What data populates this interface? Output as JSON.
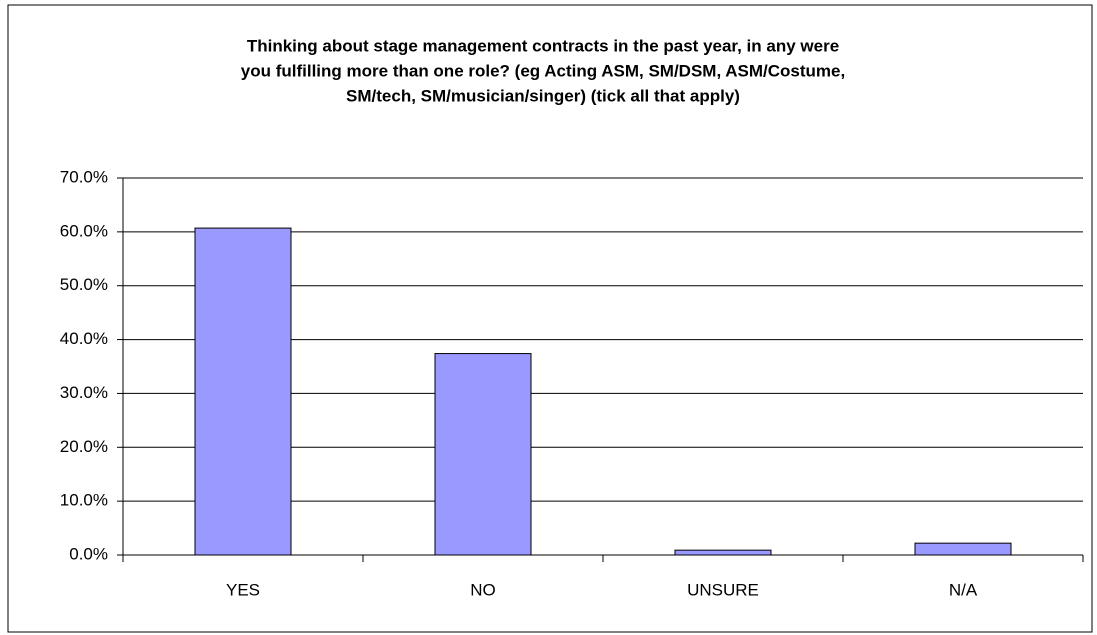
{
  "chart_data": {
    "type": "bar",
    "title": [
      "Thinking about stage management contracts in the past year, in any were",
      "you fulfilling more than one role? (eg Acting ASM, SM/DSM, ASM/Costume,",
      "SM/tech, SM/musician/singer) (tick all that apply)"
    ],
    "categories": [
      "YES",
      "NO",
      "UNSURE",
      "N/A"
    ],
    "values": [
      60.7,
      37.4,
      0.9,
      2.2
    ],
    "color": "#9999ff",
    "ylim": [
      0,
      70
    ],
    "yticks": [
      {
        "value": 0,
        "label": "0.0%"
      },
      {
        "value": 10,
        "label": "10.0%"
      },
      {
        "value": 20,
        "label": "20.0%"
      },
      {
        "value": 30,
        "label": "30.0%"
      },
      {
        "value": 40,
        "label": "40.0%"
      },
      {
        "value": 50,
        "label": "50.0%"
      },
      {
        "value": 60,
        "label": "60.0%"
      },
      {
        "value": 70,
        "label": "70.0%"
      }
    ],
    "grid": true
  }
}
